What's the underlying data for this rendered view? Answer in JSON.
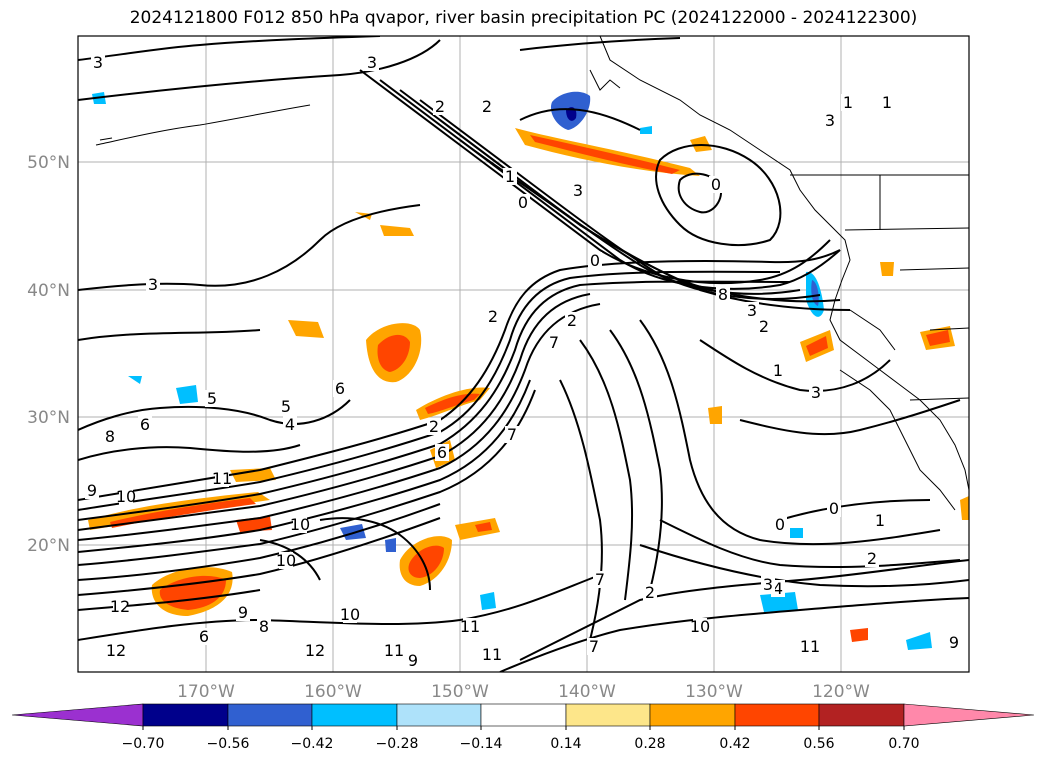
{
  "title": "2024121800 F012 850 hPa qvapor, river basin precipitation PC (2024122000 - 2024122300)",
  "lat_labels": [
    "50°N",
    "40°N",
    "30°N",
    "20°N"
  ],
  "lon_labels": [
    "170°W",
    "160°W",
    "150°W",
    "140°W",
    "130°W",
    "120°W"
  ],
  "colorbar": {
    "ticks": [
      "−0.70",
      "−0.56",
      "−0.42",
      "−0.28",
      "−0.14",
      "0.14",
      "0.28",
      "0.42",
      "0.56",
      "0.70"
    ],
    "colors": [
      "#9b30d0",
      "#00008b",
      "#3060d0",
      "#00bfff",
      "#aee2fa",
      "#ffffff",
      "#fde68a",
      "#ffa500",
      "#ff4500",
      "#b22222",
      "#ff88aa"
    ]
  },
  "contour_labels": [
    "3",
    "3",
    "3",
    "2",
    "2",
    "1",
    "0",
    "3",
    "0",
    "3",
    "1",
    "1",
    "0",
    "8",
    "3",
    "2",
    "2",
    "1",
    "3",
    "5",
    "4",
    "6",
    "5",
    "7",
    "8",
    "6",
    "9",
    "10",
    "11",
    "10",
    "12",
    "9",
    "8",
    "6",
    "10",
    "11",
    "12",
    "12",
    "11",
    "9",
    "11",
    "2",
    "7",
    "2",
    "4",
    "3",
    "7",
    "10",
    "9",
    "11",
    "0",
    "0",
    "1",
    "2",
    "2",
    "10",
    "6",
    "7"
  ]
}
